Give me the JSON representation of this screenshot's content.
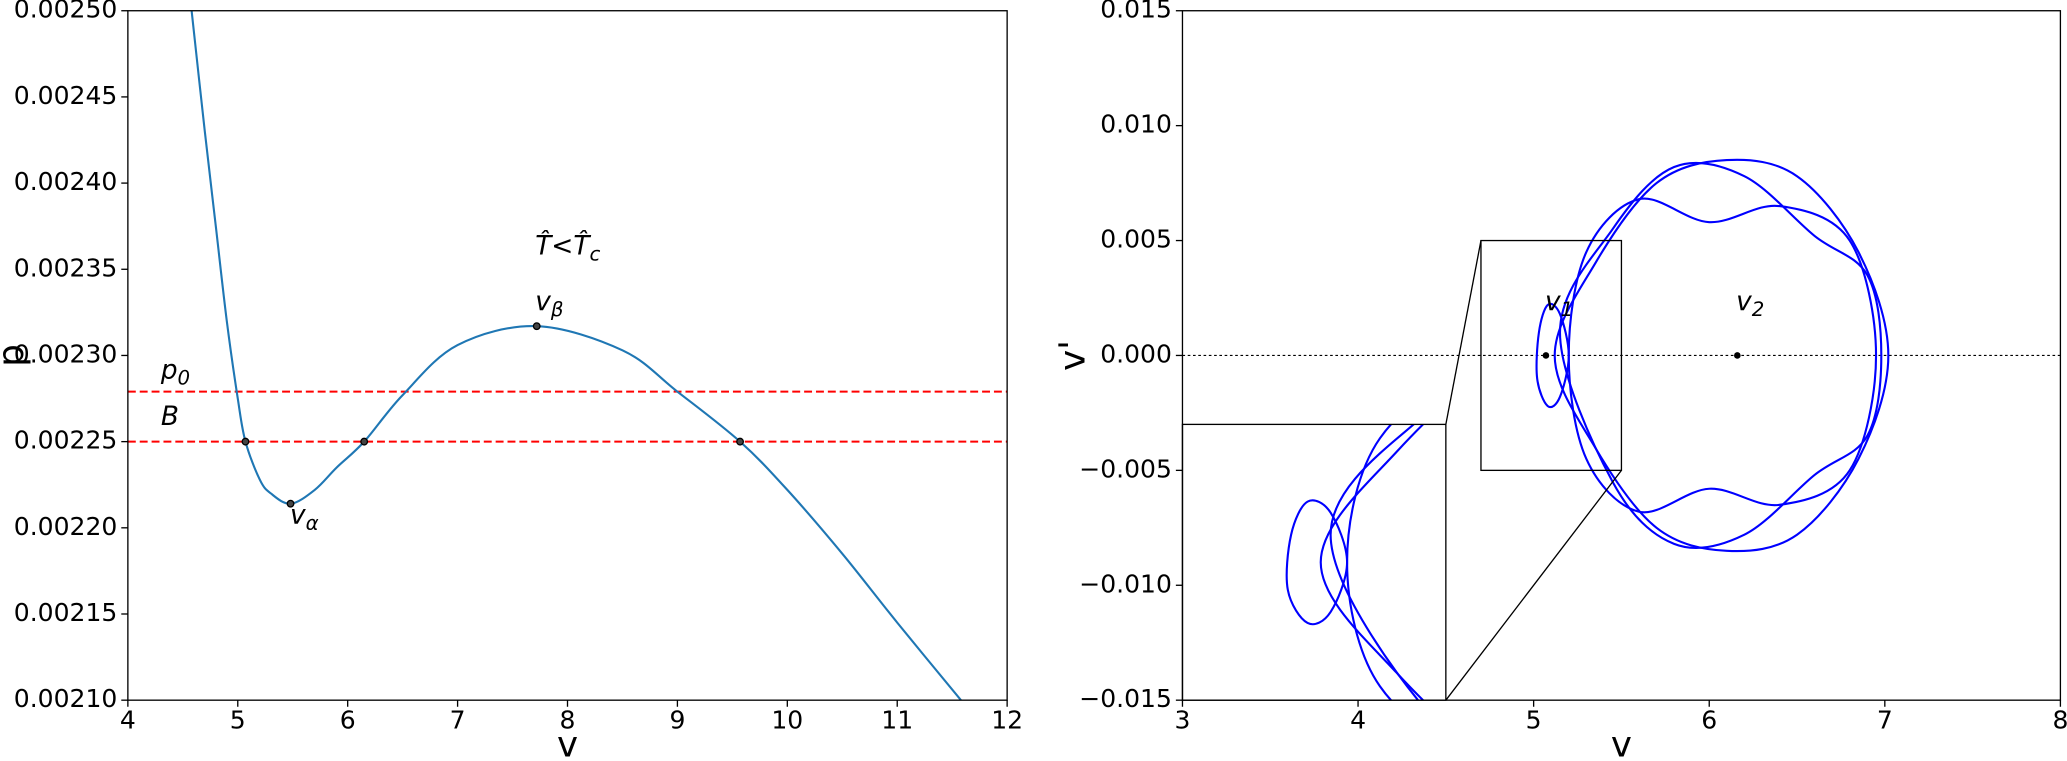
{
  "chart_data": [
    {
      "type": "line",
      "xlabel": "v",
      "ylabel": "p",
      "x": [
        4.58,
        4.7,
        4.8,
        4.9,
        5.0,
        5.07,
        5.2,
        5.3,
        5.48,
        5.7,
        5.9,
        6.15,
        6.5,
        7.0,
        7.72,
        8.5,
        9.0,
        9.57,
        10.0,
        10.5,
        11.0,
        11.58
      ],
      "series": [
        {
          "color": "#1f77b4",
          "values": [
            0.0025,
            0.00243,
            0.002375,
            0.00232,
            0.002275,
            0.00225,
            0.002228,
            0.00222,
            0.002214,
            0.002222,
            0.002235,
            0.00225,
            0.002277,
            0.002306,
            0.002317,
            0.002303,
            0.002279,
            0.00225,
            0.002222,
            0.002185,
            0.002145,
            0.0021
          ]
        }
      ],
      "points": {
        "x": [
          5.07,
          5.48,
          6.15,
          7.72,
          9.57
        ],
        "y": [
          0.00225,
          0.002214,
          0.00225,
          0.002317,
          0.00225
        ]
      },
      "hlines": {
        "color": "#ff0000",
        "values": [
          0.002279,
          0.00225
        ]
      },
      "annotations": [
        {
          "text": "p",
          "sub": "0"
        },
        {
          "text": "B"
        },
        {
          "text": "v",
          "sub": "α"
        },
        {
          "text": "v",
          "sub": "β"
        },
        {
          "text": "T̂<T̂",
          "sub": "c"
        }
      ],
      "xlim": [
        4,
        12
      ],
      "ylim": [
        0.0021,
        0.0025
      ],
      "xticks": [
        4,
        5,
        6,
        7,
        8,
        9,
        10,
        11,
        12
      ],
      "yticks": [
        {
          "value": 0.0021,
          "label": "0.00210"
        },
        {
          "value": 0.00215,
          "label": "0.00215"
        },
        {
          "value": 0.0022,
          "label": "0.00220"
        },
        {
          "value": 0.00225,
          "label": "0.00225"
        },
        {
          "value": 0.0023,
          "label": "0.00230"
        },
        {
          "value": 0.00235,
          "label": "0.00235"
        },
        {
          "value": 0.0024,
          "label": "0.00240"
        },
        {
          "value": 0.00245,
          "label": "0.00245"
        },
        {
          "value": 0.0025,
          "label": "0.00250"
        }
      ]
    },
    {
      "type": "phase",
      "xlabel": "v",
      "ylabel": "v'",
      "series": [
        {
          "color": "#0000ff",
          "x": [
            7.02,
            6.85,
            6.5,
            6.1,
            5.7,
            5.35,
            5.12,
            5.35,
            5.7,
            6.1,
            6.5,
            6.85
          ],
          "y": [
            0,
            0.0045,
            0.0078,
            0.0085,
            0.0075,
            0.004,
            0,
            -0.004,
            -0.0075,
            -0.0085,
            -0.0078,
            -0.0045
          ]
        },
        {
          "color": "#0000ff",
          "x": [
            6.95,
            6.8,
            6.4,
            6.0,
            5.6,
            5.3,
            5.2,
            5.3,
            5.6,
            6.0,
            6.4,
            6.8
          ],
          "y": [
            0,
            0.005,
            0.0065,
            0.0058,
            0.0068,
            0.0045,
            0,
            -0.0045,
            -0.0068,
            -0.0058,
            -0.0065,
            -0.005
          ]
        },
        {
          "color": "#0000ff",
          "x": [
            6.98,
            6.9,
            6.6,
            6.2,
            5.8,
            5.45,
            5.15,
            5.45,
            5.8,
            6.2,
            6.6,
            6.9
          ],
          "y": [
            0,
            0.0035,
            0.0052,
            0.0078,
            0.0082,
            0.0055,
            0.001,
            -0.0055,
            -0.0082,
            -0.0078,
            -0.0052,
            -0.0035
          ]
        },
        {
          "color": "#0000ff",
          "x": [
            5.2,
            5.15,
            5.08,
            5.03,
            5.02,
            5.08,
            5.15
          ],
          "y": [
            0,
            0.0018,
            0.0022,
            0.001,
            -0.001,
            -0.0022,
            -0.0018
          ]
        }
      ],
      "points": {
        "x": [
          5.07,
          6.16
        ],
        "y": [
          0,
          0
        ]
      },
      "annotations": [
        {
          "text": "v",
          "sub": "1"
        },
        {
          "text": "v",
          "sub": "2"
        }
      ],
      "xlim": [
        3,
        8
      ],
      "ylim": [
        -0.015,
        0.015
      ],
      "xticks": [
        3,
        4,
        5,
        6,
        7,
        8
      ],
      "yticks": [
        {
          "value": -0.015,
          "label": "−0.015"
        },
        {
          "value": -0.01,
          "label": "−0.010"
        },
        {
          "value": -0.005,
          "label": "−0.005"
        },
        {
          "value": 0,
          "label": "0.000"
        },
        {
          "value": 0.005,
          "label": "0.005"
        },
        {
          "value": 0.01,
          "label": "0.010"
        },
        {
          "value": 0.015,
          "label": "0.015"
        }
      ]
    }
  ]
}
